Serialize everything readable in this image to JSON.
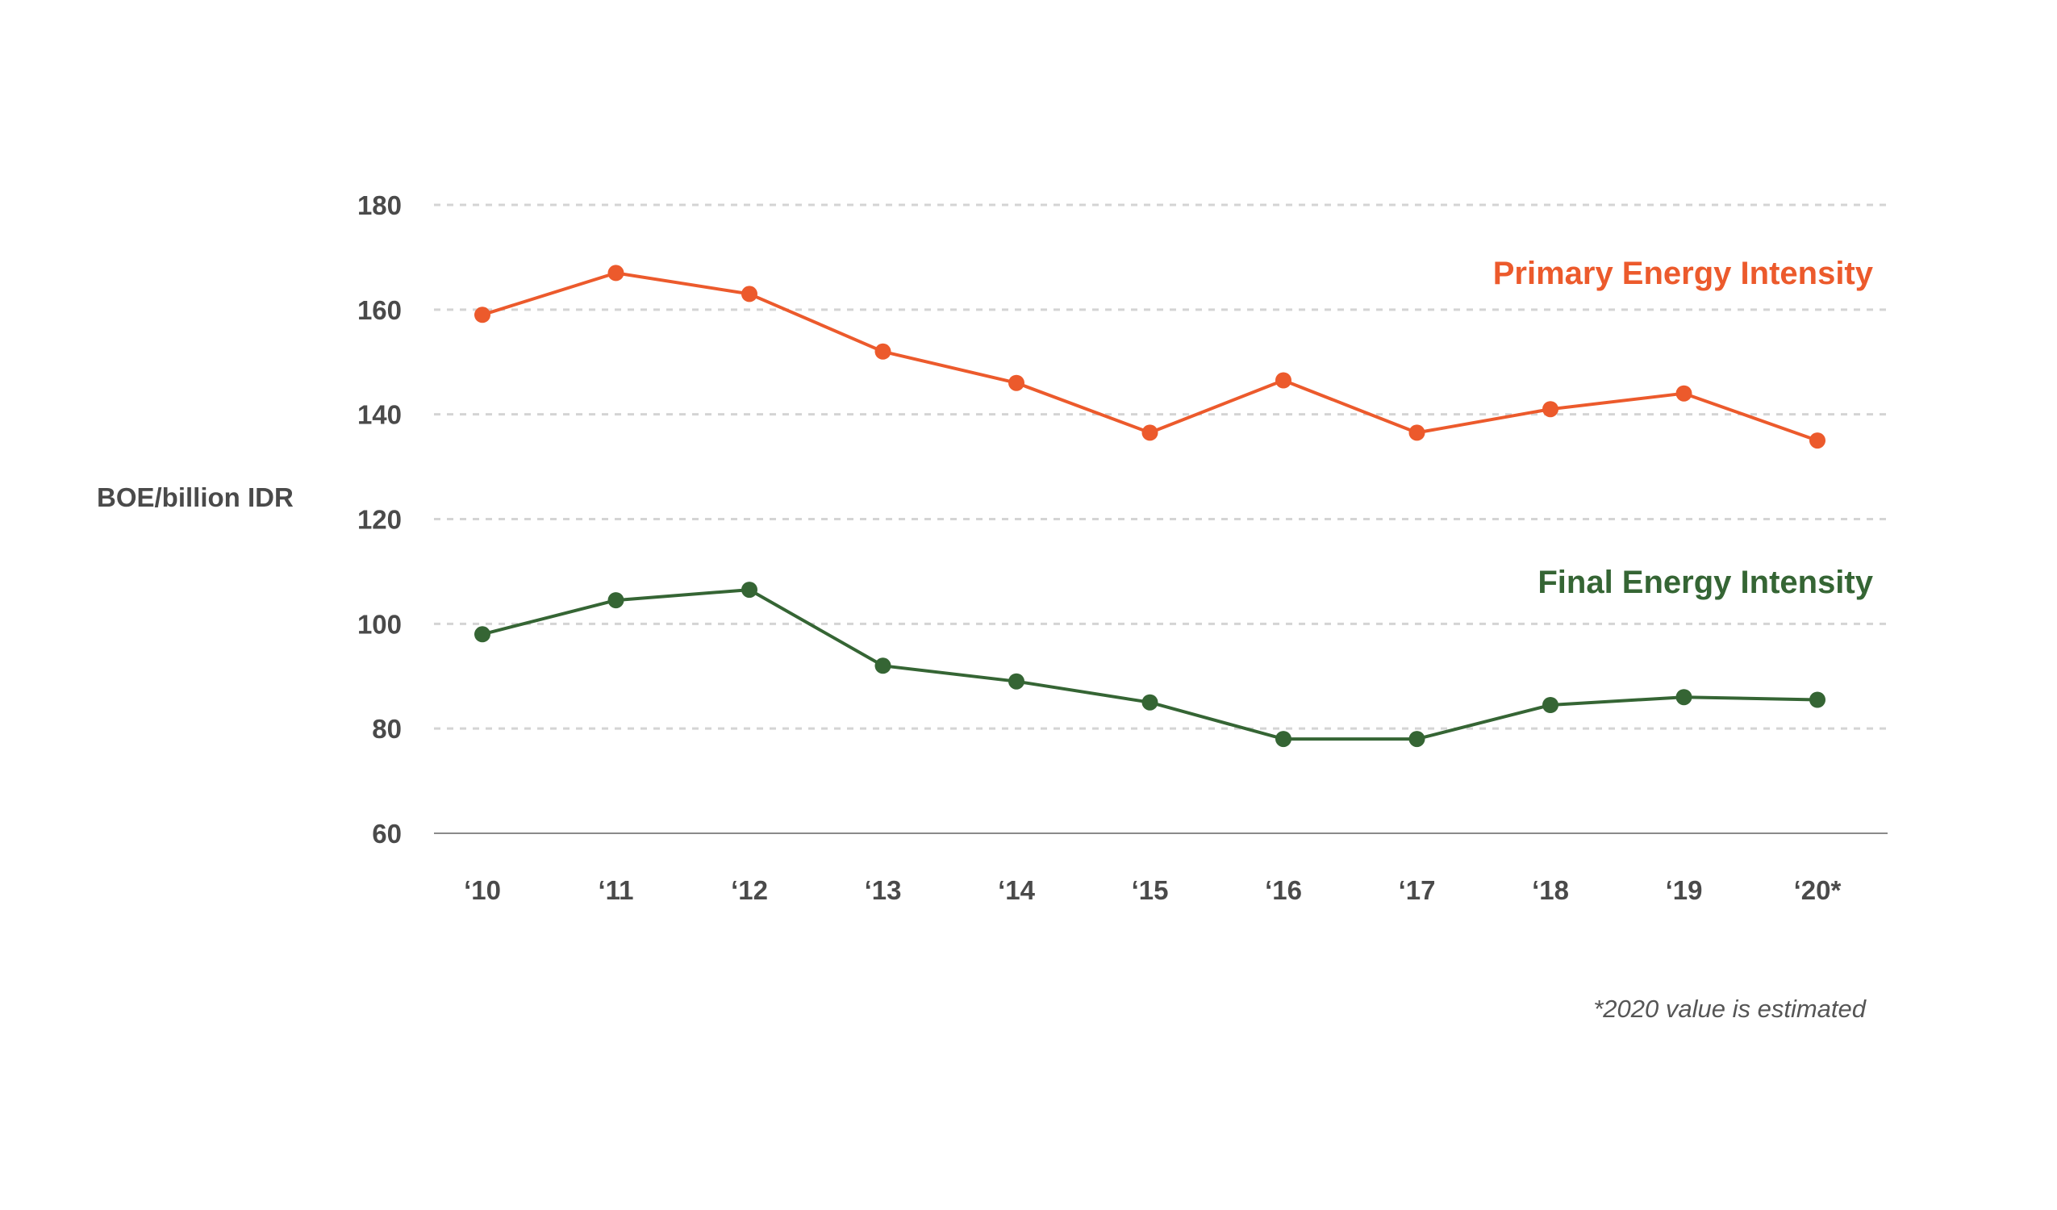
{
  "chart_data": {
    "type": "line",
    "title": "",
    "xlabel": "",
    "ylabel": "BOE/billion IDR",
    "categories": [
      "‘10",
      "‘11",
      "‘12",
      "‘13",
      "‘14",
      "‘15",
      "‘16",
      "‘17",
      "‘18",
      "‘19",
      "‘20*"
    ],
    "x": [
      2010,
      2011,
      2012,
      2013,
      2014,
      2015,
      2016,
      2017,
      2018,
      2019,
      2020
    ],
    "ylim": [
      60,
      180
    ],
    "yticks": [
      60,
      80,
      100,
      120,
      140,
      160,
      180
    ],
    "grid": true,
    "series": [
      {
        "name": "Primary Energy Intensity",
        "color": "#ec5a2c",
        "values": [
          159,
          167,
          163,
          152,
          146,
          136.5,
          146.5,
          136.5,
          141,
          144,
          135
        ]
      },
      {
        "name": "Final Energy Intensity",
        "color": "#356534",
        "values": [
          98,
          104.5,
          106.5,
          92,
          89,
          85,
          78,
          78,
          84.5,
          86,
          85.5
        ]
      }
    ],
    "annotations": [
      "*2020 value is estimated"
    ]
  }
}
